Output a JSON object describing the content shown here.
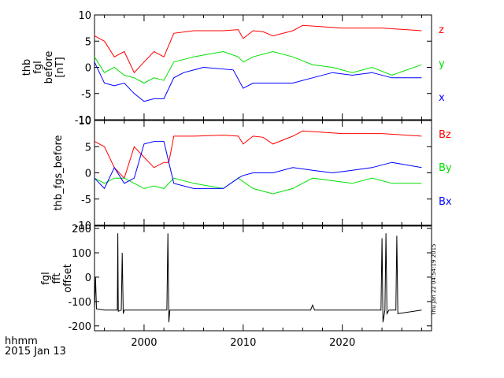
{
  "footer": {
    "line1": "hhmm",
    "line2": "2015 Jan 13"
  },
  "side_stamp": "Thu Jan 22 04:54:19 2015",
  "colors": {
    "red": "#ff0000",
    "green": "#00e000",
    "blue": "#0000ff",
    "black": "#000000"
  },
  "chart_data": [
    {
      "type": "line",
      "ylabel_lines": [
        "thb",
        "fgl",
        "before",
        "[nT]"
      ],
      "ylim": [
        -10,
        10
      ],
      "yticks": [
        -10,
        -5,
        0,
        5,
        10
      ],
      "xlim": [
        1995,
        2029
      ],
      "series": [
        {
          "name": "z",
          "color": "#ff0000",
          "x": [
            1995,
            1996,
            1997,
            1998,
            1999,
            2000,
            2001,
            2002,
            2003,
            2005,
            2008,
            2009.5,
            2010,
            2011,
            2012,
            2013,
            2015,
            2016,
            2020,
            2024,
            2028
          ],
          "values": [
            6,
            5,
            2,
            3,
            -1,
            1,
            3,
            2,
            6.5,
            7,
            7,
            7.2,
            5.5,
            7,
            6.8,
            6,
            7,
            8,
            7.5,
            7.5,
            7
          ]
        },
        {
          "name": "y",
          "color": "#00e000",
          "x": [
            1995,
            1996,
            1997,
            1998,
            1999,
            2000,
            2001,
            2002,
            2003,
            2005,
            2008,
            2009.5,
            2010,
            2011,
            2013,
            2015,
            2017,
            2019,
            2021,
            2023,
            2025,
            2028
          ],
          "values": [
            2,
            -1,
            0,
            -1.5,
            -2,
            -3,
            -2,
            -2.5,
            1,
            2,
            3,
            2,
            1,
            2,
            3,
            2,
            0.5,
            0,
            -1,
            0,
            -1.5,
            0.5
          ]
        },
        {
          "name": "x",
          "color": "#0000ff",
          "x": [
            1995,
            1996,
            1997,
            1998,
            1999,
            2000,
            2001,
            2002,
            2003,
            2004,
            2006,
            2009,
            2010,
            2011,
            2013,
            2015,
            2017,
            2019,
            2021,
            2023,
            2025,
            2028
          ],
          "values": [
            1,
            -3,
            -3.5,
            -3,
            -5,
            -6.5,
            -6,
            -6,
            -2,
            -1,
            0,
            -0.5,
            -4,
            -3,
            -3,
            -3,
            -2,
            -1,
            -1.5,
            -1,
            -2,
            -2
          ]
        }
      ]
    },
    {
      "type": "line",
      "ylabel_lines": [
        "thb_fgs_before"
      ],
      "ylim": [
        -10,
        10
      ],
      "yticks": [
        -10,
        -5,
        0,
        5,
        10
      ],
      "xlim": [
        1995,
        2029
      ],
      "series": [
        {
          "name": "Bz",
          "color": "#ff0000",
          "x": [
            1995,
            1996,
            1997,
            1998,
            1999,
            2000,
            2001,
            2002,
            2002.5,
            2003,
            2005,
            2008,
            2009.5,
            2010,
            2011,
            2012,
            2013,
            2015,
            2016,
            2020,
            2024,
            2028
          ],
          "values": [
            6,
            5,
            1,
            -1,
            5,
            3,
            1,
            2,
            2,
            7,
            7,
            7.2,
            7,
            5.5,
            7,
            6.8,
            5.5,
            7,
            8,
            7.5,
            7.5,
            7
          ]
        },
        {
          "name": "By",
          "color": "#00e000",
          "x": [
            1995,
            1996,
            1997,
            1998,
            1999,
            2000,
            2001,
            2002,
            2003,
            2005,
            2008,
            2009.5,
            2011,
            2013,
            2015,
            2017,
            2019,
            2021,
            2023,
            2025,
            2028
          ],
          "values": [
            -1,
            -2,
            -1,
            -1,
            -2,
            -3,
            -2.5,
            -3,
            -1,
            -2,
            -3,
            -1,
            -3,
            -4,
            -3,
            -1,
            -1.5,
            -2,
            -1,
            -2,
            -2
          ]
        },
        {
          "name": "Bx",
          "color": "#0000ff",
          "x": [
            1995,
            1996,
            1997,
            1998,
            1999,
            2000,
            2001,
            2002,
            2003,
            2005,
            2008,
            2009.5,
            2010,
            2011,
            2013,
            2015,
            2017,
            2019,
            2021,
            2023,
            2025,
            2028
          ],
          "values": [
            -1,
            -3,
            1,
            -2,
            -1,
            5.5,
            6,
            6,
            -2,
            -3,
            -3,
            -1,
            -0.5,
            0,
            0,
            1,
            0.5,
            0,
            0.5,
            1,
            2,
            1
          ]
        }
      ]
    },
    {
      "type": "line",
      "ylabel_lines": [
        "fgl",
        "fft",
        "offset"
      ],
      "ylim": [
        -220,
        210
      ],
      "yticks": [
        -200,
        -100,
        0,
        100,
        200
      ],
      "xlim": [
        1995,
        2029
      ],
      "xticks": [
        2000,
        2010,
        2020
      ],
      "series": [
        {
          "name": "",
          "color": "#000000",
          "x": [
            1995,
            1995.1,
            1995.2,
            1996,
            1997.3,
            1997.35,
            1997.4,
            1997.7,
            1997.8,
            1997.9,
            1998,
            2002.3,
            2002.4,
            2002.5,
            2002.6,
            2002.7,
            2010,
            2016.8,
            2017,
            2017.2,
            2020,
            2023.9,
            2024,
            2024.1,
            2024.3,
            2024.4,
            2024.5,
            2024.7,
            2025.4,
            2025.5,
            2025.6,
            2028
          ],
          "values": [
            -130,
            0,
            -130,
            -135,
            -135,
            180,
            -140,
            -135,
            100,
            -150,
            -135,
            -135,
            180,
            -185,
            -135,
            -135,
            -135,
            -135,
            -115,
            -135,
            -135,
            -135,
            160,
            -185,
            -135,
            180,
            -150,
            -135,
            -135,
            170,
            -150,
            -135
          ]
        }
      ]
    }
  ]
}
